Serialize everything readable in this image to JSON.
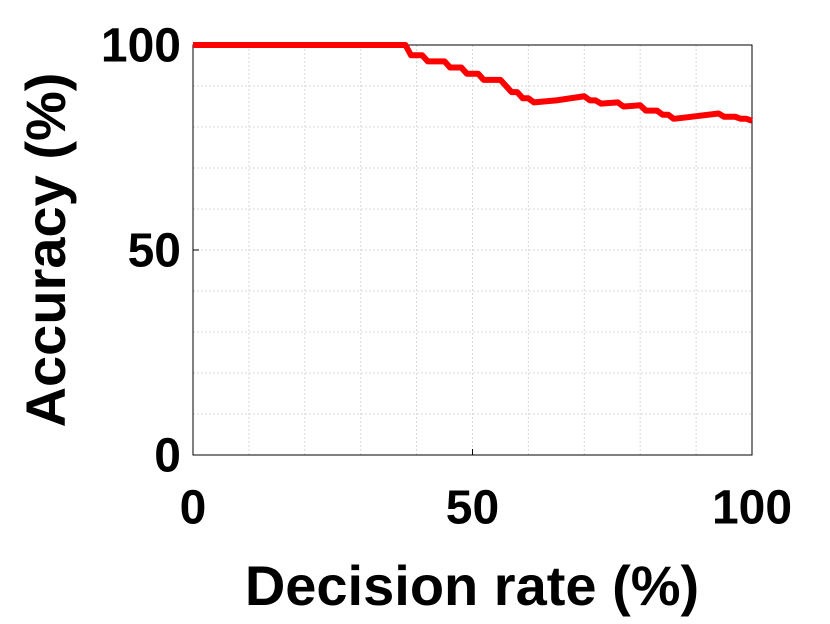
{
  "chart_data": {
    "type": "line",
    "x_label": "Decision rate (%)",
    "y_label": "Accuracy (%)",
    "x": [
      0,
      38,
      39,
      41,
      42,
      45,
      46,
      48,
      49,
      51,
      52,
      55,
      56,
      57,
      58,
      59,
      60,
      61,
      65,
      70,
      71,
      72,
      73,
      76,
      77,
      80,
      81,
      83,
      84,
      85,
      86,
      88,
      94,
      95,
      97,
      98,
      99,
      100
    ],
    "series": [
      {
        "name": "Accuracy",
        "color": "#ff0000",
        "values": [
          100,
          100,
          97.5,
          97.5,
          96,
          96,
          94.5,
          94.5,
          93,
          93,
          91.5,
          91.5,
          90,
          88.5,
          88.5,
          87,
          87,
          86,
          86.5,
          87.5,
          86.5,
          86.5,
          85.7,
          86,
          85,
          85.3,
          84,
          84,
          83,
          83,
          82,
          82.3,
          83.3,
          82.5,
          82.5,
          82,
          82,
          81.5
        ]
      }
    ],
    "xlim": [
      0,
      100
    ],
    "ylim": [
      0,
      100
    ],
    "xticks": [
      0,
      50,
      100
    ],
    "yticks": [
      0,
      50,
      100
    ],
    "xminor_ticks": [
      10,
      20,
      30,
      40,
      60,
      70,
      80,
      90
    ],
    "yminor_ticks": [
      10,
      20,
      30,
      40,
      60,
      70,
      80,
      90
    ],
    "grid": true
  }
}
